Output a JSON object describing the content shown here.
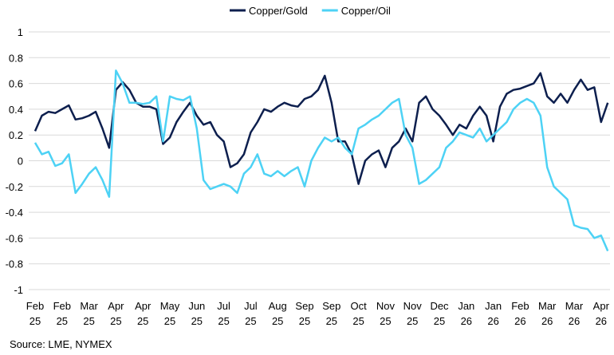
{
  "chart_data": {
    "type": "line",
    "source": "Source: LME, NYMEX",
    "categories": [
      "Feb 25",
      null,
      null,
      null,
      "Feb 25",
      null,
      null,
      null,
      "Mar 25",
      null,
      null,
      null,
      "Apr 25",
      null,
      null,
      null,
      "Apr 25",
      null,
      null,
      null,
      "May 25",
      null,
      null,
      null,
      "Jun 25",
      null,
      null,
      null,
      "Jul 25",
      null,
      null,
      null,
      "Jul 25",
      null,
      null,
      null,
      "Aug 25",
      null,
      null,
      null,
      "Sep 25",
      null,
      null,
      null,
      "Sep 25",
      null,
      null,
      null,
      "Oct 25",
      null,
      null,
      null,
      "Nov 25",
      null,
      null,
      null,
      "Nov 25",
      null,
      null,
      null,
      "Dec 25",
      null,
      null,
      null,
      "Jan 26",
      null,
      null,
      null,
      "Jan 26",
      null,
      null,
      null,
      "Feb 26",
      null,
      null,
      null,
      "Mar 26",
      null,
      null,
      null,
      "Mar 26",
      null,
      null,
      null,
      "Apr 26",
      null
    ],
    "series": [
      {
        "name": "Copper/Gold",
        "color": "#0d1f4e",
        "values": [
          0.23,
          0.35,
          0.38,
          0.37,
          0.4,
          0.43,
          0.32,
          0.33,
          0.35,
          0.38,
          0.25,
          0.1,
          0.55,
          0.61,
          0.55,
          0.45,
          0.42,
          0.42,
          0.4,
          0.13,
          0.18,
          0.3,
          0.38,
          0.45,
          0.35,
          0.28,
          0.3,
          0.2,
          0.15,
          -0.05,
          -0.02,
          0.05,
          0.22,
          0.3,
          0.4,
          0.38,
          0.42,
          0.45,
          0.43,
          0.42,
          0.48,
          0.5,
          0.55,
          0.66,
          0.45,
          0.15,
          0.15,
          0.05,
          -0.18,
          0.0,
          0.05,
          0.08,
          -0.05,
          0.1,
          0.15,
          0.25,
          0.15,
          0.45,
          0.5,
          0.4,
          0.35,
          0.28,
          0.2,
          0.28,
          0.25,
          0.35,
          0.42,
          0.35,
          0.15,
          0.42,
          0.52,
          0.55,
          0.56,
          0.58,
          0.6,
          0.68,
          0.5,
          0.45,
          0.52,
          0.45,
          0.55,
          0.63,
          0.55,
          0.57,
          0.3,
          0.45
        ]
      },
      {
        "name": "Copper/Oil",
        "color": "#4dd2f5",
        "values": [
          0.14,
          0.05,
          0.07,
          -0.04,
          -0.02,
          0.05,
          -0.25,
          -0.18,
          -0.1,
          -0.05,
          -0.15,
          -0.28,
          0.7,
          0.6,
          0.45,
          0.45,
          0.44,
          0.45,
          0.5,
          0.15,
          0.5,
          0.48,
          0.47,
          0.5,
          0.25,
          -0.15,
          -0.22,
          -0.2,
          -0.18,
          -0.2,
          -0.25,
          -0.1,
          -0.05,
          0.05,
          -0.1,
          -0.12,
          -0.08,
          -0.12,
          -0.08,
          -0.05,
          -0.2,
          0.0,
          0.1,
          0.18,
          0.15,
          0.18,
          0.1,
          0.05,
          0.25,
          0.28,
          0.32,
          0.35,
          0.4,
          0.45,
          0.48,
          0.2,
          0.1,
          -0.18,
          -0.15,
          -0.1,
          -0.05,
          0.1,
          0.15,
          0.22,
          0.2,
          0.18,
          0.25,
          0.15,
          0.2,
          0.25,
          0.3,
          0.4,
          0.45,
          0.48,
          0.45,
          0.35,
          -0.05,
          -0.2,
          -0.25,
          -0.3,
          -0.5,
          -0.52,
          -0.53,
          -0.6,
          -0.58,
          -0.7
        ]
      }
    ],
    "ylim": [
      -1,
      1
    ],
    "yticks": [
      -1,
      -0.8,
      -0.6,
      -0.4,
      -0.2,
      0,
      0.2,
      0.4,
      0.6,
      0.8,
      1
    ],
    "grid": true,
    "legend": "top"
  }
}
